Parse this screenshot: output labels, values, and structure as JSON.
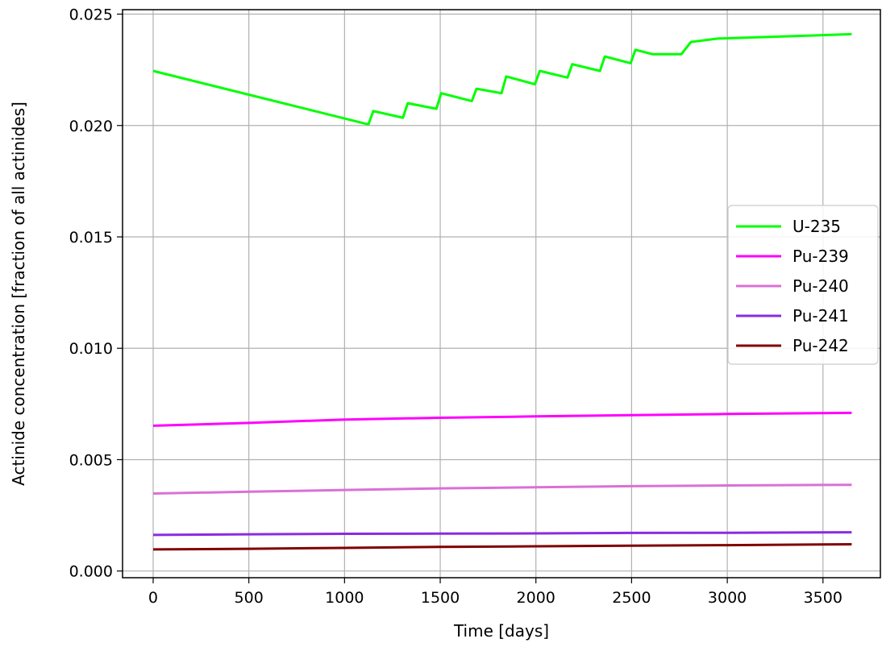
{
  "chart_data": {
    "type": "line",
    "xlabel": "Time [days]",
    "ylabel": "Actinide concentration [fraction of all actinides]",
    "xlim": [
      -160,
      3800
    ],
    "ylim": [
      -0.0003,
      0.0252
    ],
    "xticks": [
      {
        "value": 0,
        "label": "0"
      },
      {
        "value": 500,
        "label": "500"
      },
      {
        "value": 1000,
        "label": "1000"
      },
      {
        "value": 1500,
        "label": "1500"
      },
      {
        "value": 2000,
        "label": "2000"
      },
      {
        "value": 2500,
        "label": "2500"
      },
      {
        "value": 3000,
        "label": "3000"
      },
      {
        "value": 3500,
        "label": "3500"
      }
    ],
    "yticks": [
      {
        "value": 0.0,
        "label": "0.000"
      },
      {
        "value": 0.005,
        "label": "0.005"
      },
      {
        "value": 0.01,
        "label": "0.010"
      },
      {
        "value": 0.015,
        "label": "0.015"
      },
      {
        "value": 0.02,
        "label": "0.020"
      },
      {
        "value": 0.025,
        "label": "0.025"
      }
    ],
    "grid": true,
    "legend": "center-right",
    "series": [
      {
        "name": "U-235",
        "color": "#00ff00",
        "x": [
          0,
          1125,
          1150,
          1305,
          1330,
          1480,
          1505,
          1665,
          1690,
          1820,
          1845,
          1995,
          2020,
          2165,
          2190,
          2335,
          2360,
          2495,
          2520,
          2610,
          2760,
          2810,
          2950,
          3650
        ],
        "y": [
          0.02245,
          0.02005,
          0.02065,
          0.02035,
          0.021,
          0.02075,
          0.02145,
          0.0211,
          0.02165,
          0.02145,
          0.0222,
          0.02185,
          0.02245,
          0.02215,
          0.02275,
          0.02245,
          0.0231,
          0.0228,
          0.0234,
          0.0232,
          0.0232,
          0.02375,
          0.0239,
          0.0241
        ]
      },
      {
        "name": "Pu-239",
        "color": "#ff00ff",
        "x": [
          0,
          500,
          1000,
          1500,
          2000,
          2500,
          3000,
          3650
        ],
        "y": [
          0.00652,
          0.00665,
          0.0068,
          0.00688,
          0.00694,
          0.007,
          0.00705,
          0.0071
        ]
      },
      {
        "name": "Pu-240",
        "color": "#da70d6",
        "x": [
          0,
          500,
          1000,
          1500,
          2000,
          2500,
          3000,
          3650
        ],
        "y": [
          0.00348,
          0.00356,
          0.00364,
          0.00371,
          0.00376,
          0.00381,
          0.00384,
          0.00387
        ]
      },
      {
        "name": "Pu-241",
        "color": "#8a2be2",
        "x": [
          0,
          500,
          1000,
          1500,
          2000,
          2500,
          3000,
          3650
        ],
        "y": [
          0.00162,
          0.00165,
          0.00167,
          0.00168,
          0.00169,
          0.00171,
          0.00172,
          0.00174
        ]
      },
      {
        "name": "Pu-242",
        "color": "#800000",
        "x": [
          0,
          500,
          1000,
          1500,
          2000,
          2500,
          3000,
          3650
        ],
        "y": [
          0.00097,
          0.001,
          0.00104,
          0.00108,
          0.00111,
          0.00114,
          0.00116,
          0.0012
        ]
      }
    ]
  }
}
